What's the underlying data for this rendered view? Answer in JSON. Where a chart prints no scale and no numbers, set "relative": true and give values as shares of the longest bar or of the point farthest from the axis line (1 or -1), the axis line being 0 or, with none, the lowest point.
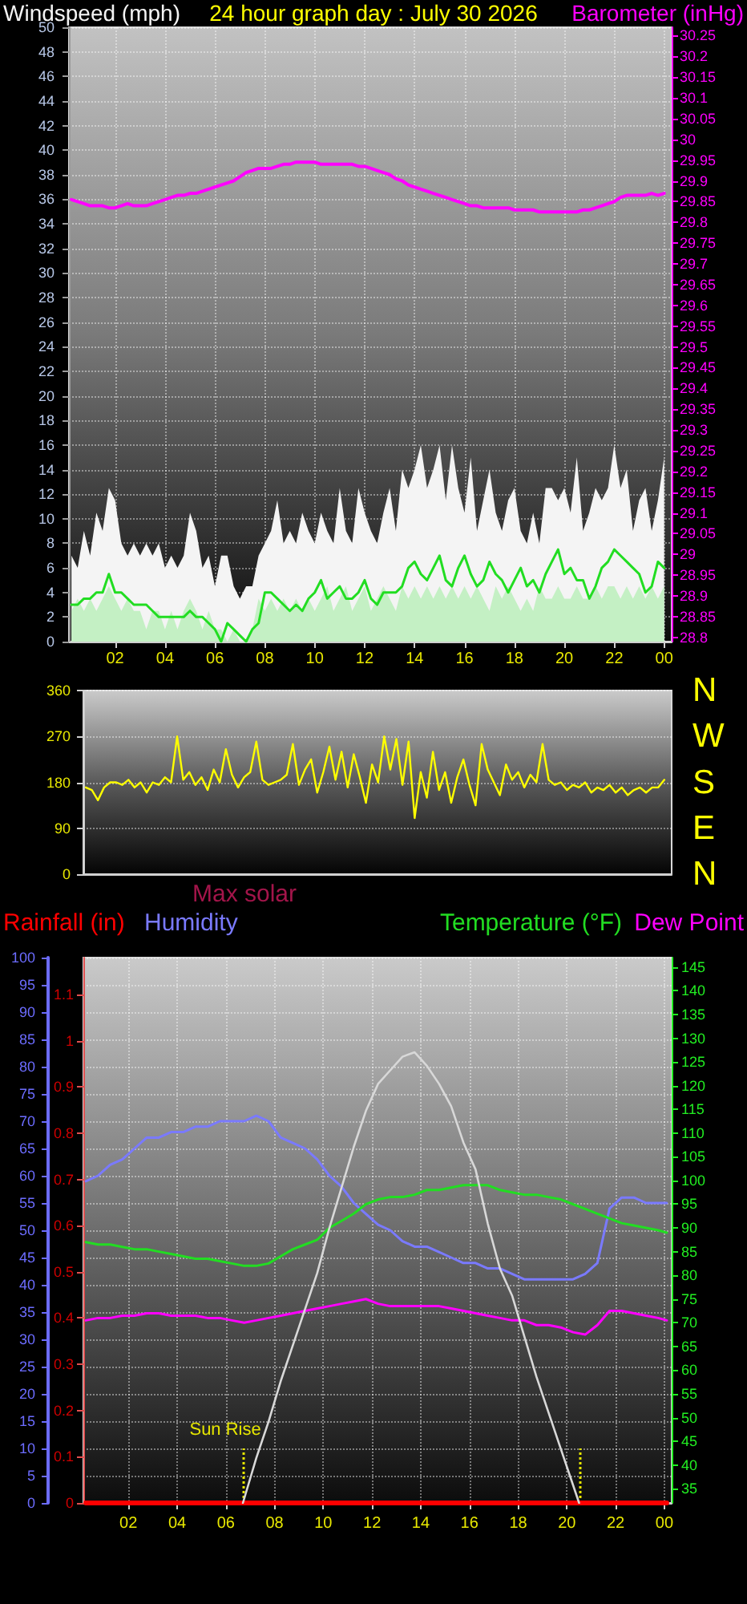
{
  "chart_data": [
    {
      "type": "line",
      "title": "24 hour graph day : July 30 2026",
      "ylabel": "Windspeed (mph)",
      "y2label": "Barometer (inHg)",
      "x": [
        "2026-07-29T00:15",
        "2026-07-29T00:30",
        "2026-07-29T00:45",
        "2026-07-29T01:00",
        "2026-07-29T01:15",
        "2026-07-29T01:30",
        "2026-07-29T01:45",
        "2026-07-29T02:00",
        "2026-07-29T02:15",
        "2026-07-29T02:30",
        "2026-07-29T02:45",
        "2026-07-29T03:00",
        "2026-07-29T03:15",
        "2026-07-29T03:30",
        "2026-07-29T03:45",
        "2026-07-29T04:00",
        "2026-07-29T04:15",
        "2026-07-29T04:30",
        "2026-07-29T04:45",
        "2026-07-29T05:00",
        "2026-07-29T05:15",
        "2026-07-29T05:30",
        "2026-07-29T05:45",
        "2026-07-29T06:00",
        "2026-07-29T06:15",
        "2026-07-29T06:30",
        "2026-07-29T06:45",
        "2026-07-29T07:00",
        "2026-07-29T07:15",
        "2026-07-29T07:30",
        "2026-07-29T07:45",
        "2026-07-29T08:00",
        "2026-07-29T08:15",
        "2026-07-29T08:30",
        "2026-07-29T08:45",
        "2026-07-29T09:00",
        "2026-07-29T09:15",
        "2026-07-29T09:30",
        "2026-07-29T09:45",
        "2026-07-29T10:00",
        "2026-07-29T10:15",
        "2026-07-29T10:30",
        "2026-07-29T10:45",
        "2026-07-29T11:00",
        "2026-07-29T11:15",
        "2026-07-29T11:30",
        "2026-07-29T11:45",
        "2026-07-29T12:00",
        "2026-07-29T12:15",
        "2026-07-29T12:30",
        "2026-07-29T12:45",
        "2026-07-29T13:00",
        "2026-07-29T13:15",
        "2026-07-29T13:30",
        "2026-07-29T13:45",
        "2026-07-29T14:00",
        "2026-07-29T14:15",
        "2026-07-29T14:30",
        "2026-07-29T14:45",
        "2026-07-29T15:00",
        "2026-07-29T15:15",
        "2026-07-29T15:30",
        "2026-07-29T15:45",
        "2026-07-29T16:00",
        "2026-07-29T16:15",
        "2026-07-29T16:30",
        "2026-07-29T16:45",
        "2026-07-29T17:00",
        "2026-07-29T17:15",
        "2026-07-29T17:30",
        "2026-07-29T17:45",
        "2026-07-29T18:00",
        "2026-07-29T18:15",
        "2026-07-29T18:30",
        "2026-07-29T18:45",
        "2026-07-29T19:00",
        "2026-07-29T19:15",
        "2026-07-29T19:30",
        "2026-07-29T19:45",
        "2026-07-29T20:00",
        "2026-07-29T20:15",
        "2026-07-29T20:30",
        "2026-07-29T20:45",
        "2026-07-29T21:00",
        "2026-07-29T21:15",
        "2026-07-29T21:30",
        "2026-07-29T21:45",
        "2026-07-29T22:00",
        "2026-07-29T22:15",
        "2026-07-29T22:30",
        "2026-07-29T22:45",
        "2026-07-29T23:00",
        "2026-07-29T23:15",
        "2026-07-29T23:30",
        "2026-07-29T23:45",
        "2026-07-30T00:00"
      ],
      "xlim": [
        "2026-07-29T00:09",
        "2026-07-30T00:18"
      ],
      "xticks": [
        {
          "value": "2026-07-29T02:00",
          "label": "02"
        },
        {
          "value": "2026-07-29T04:00",
          "label": "04"
        },
        {
          "value": "2026-07-29T06:00",
          "label": "06"
        },
        {
          "value": "2026-07-29T08:00",
          "label": "08"
        },
        {
          "value": "2026-07-29T10:00",
          "label": "10"
        },
        {
          "value": "2026-07-29T12:00",
          "label": "12"
        },
        {
          "value": "2026-07-29T14:00",
          "label": "14"
        },
        {
          "value": "2026-07-29T16:00",
          "label": "16"
        },
        {
          "value": "2026-07-29T18:00",
          "label": "18"
        },
        {
          "value": "2026-07-29T20:00",
          "label": "20"
        },
        {
          "value": "2026-07-29T22:00",
          "label": "22"
        },
        {
          "value": "2026-07-30T00:00",
          "label": "00"
        }
      ],
      "ylim": [
        0,
        50
      ],
      "yticks": [
        0,
        2,
        4,
        6,
        8,
        10,
        12,
        14,
        16,
        18,
        20,
        22,
        24,
        26,
        28,
        30,
        32,
        34,
        36,
        38,
        40,
        42,
        44,
        46,
        48,
        50
      ],
      "y2lim": [
        28.79,
        30.27
      ],
      "y2ticks": [
        28.8,
        28.85,
        28.9,
        28.95,
        29,
        29.05,
        29.1,
        29.15,
        29.2,
        29.25,
        29.3,
        29.35,
        29.4,
        29.45,
        29.5,
        29.55,
        29.6,
        29.65,
        29.7,
        29.75,
        29.8,
        29.85,
        29.9,
        29.95,
        30,
        30.05,
        30.1,
        30.15,
        30.2,
        30.25
      ],
      "grid": true,
      "series": [
        {
          "type": "area",
          "color": "#f4f4f4",
          "values": [
            7,
            6,
            9,
            7,
            10.5,
            9,
            12.5,
            11.5,
            8,
            7,
            8,
            7,
            8,
            7,
            8,
            6,
            7,
            6,
            7,
            10.5,
            9,
            6,
            7,
            4.5,
            7,
            7,
            4.5,
            3.5,
            4.5,
            4.5,
            7,
            8,
            9,
            11.5,
            8,
            9,
            8,
            10.5,
            9,
            8,
            10.5,
            9,
            8,
            12.5,
            9,
            8,
            12.5,
            10.5,
            9,
            8,
            10.5,
            12.5,
            9,
            14,
            12.5,
            14,
            16,
            12.5,
            14,
            16,
            11.5,
            16,
            12.5,
            10.5,
            15,
            9,
            11.5,
            14,
            10.5,
            9,
            11.5,
            12.5,
            9,
            8,
            10.5,
            8,
            12.5,
            12.5,
            11.5,
            12.5,
            10.5,
            15,
            9,
            10.5,
            12.5,
            11.5,
            12.5,
            16,
            12.5,
            14,
            9,
            11.5,
            12.5,
            9,
            11.5,
            15
          ]
        },
        {
          "type": "area",
          "color": "#c4f0c4",
          "values": [
            2.5,
            3.5,
            2.5,
            3.5,
            2.5,
            3.5,
            4.5,
            3.5,
            2.5,
            3.5,
            2.5,
            2.5,
            1,
            2.5,
            2.5,
            1,
            2.5,
            1,
            2.5,
            3.5,
            2.5,
            1,
            2.5,
            1,
            1,
            0,
            1,
            0,
            0,
            1,
            3.5,
            2.5,
            3.5,
            2.5,
            3.5,
            2.5,
            3.5,
            2.5,
            3.5,
            2.5,
            3.5,
            4.5,
            2.5,
            3.5,
            4.5,
            2.5,
            3.5,
            4.5,
            2.5,
            3.5,
            4.5,
            3.5,
            2.5,
            4.5,
            3.5,
            4.5,
            3.5,
            4.5,
            3.5,
            4.5,
            3.5,
            4.5,
            3.5,
            4.5,
            3.5,
            4.5,
            3.5,
            2.5,
            4.5,
            3.5,
            4.5,
            3.5,
            2.5,
            3.5,
            2.5,
            4.5,
            3.5,
            3.5,
            4.5,
            3.5,
            3.5,
            4.5,
            3.5,
            3.5,
            4.5,
            3.5,
            4.5,
            4.5,
            3.5,
            4.5,
            3.5,
            4.5,
            3.5,
            4.5,
            3.5,
            4.5
          ]
        },
        {
          "color": "#22dd22",
          "values": [
            3,
            3,
            3.5,
            3.5,
            4,
            4,
            5.5,
            4,
            4,
            3.5,
            3,
            3,
            3,
            2.5,
            2,
            2,
            2,
            2,
            2,
            2.5,
            2,
            2,
            1.5,
            1,
            0,
            1.5,
            1,
            0.5,
            0,
            1,
            1.5,
            4,
            4,
            3.5,
            3,
            2.5,
            3,
            2.5,
            3.5,
            4,
            5,
            3.5,
            4,
            4.5,
            3.5,
            3.5,
            4,
            5,
            3.5,
            3,
            4,
            4,
            4,
            4.5,
            6,
            6.5,
            5.5,
            5,
            6,
            7,
            5,
            4.5,
            6,
            7,
            5.5,
            4.5,
            5,
            6.5,
            5.5,
            5,
            4,
            5,
            6,
            4.5,
            5,
            4,
            5.5,
            6.5,
            7.5,
            5.5,
            6,
            5,
            5,
            3.5,
            4.5,
            6,
            6.5,
            7.5,
            7,
            6.5,
            6,
            5.5,
            4,
            4.5,
            6.5,
            6
          ]
        },
        {
          "color": "#ff00ff",
          "axis": "y2",
          "values": [
            29.855,
            29.85,
            29.845,
            29.84,
            29.84,
            29.84,
            29.835,
            29.835,
            29.84,
            29.845,
            29.84,
            29.84,
            29.84,
            29.845,
            29.85,
            29.855,
            29.86,
            29.865,
            29.865,
            29.87,
            29.87,
            29.875,
            29.88,
            29.885,
            29.89,
            29.895,
            29.9,
            29.91,
            29.92,
            29.925,
            29.93,
            29.93,
            29.93,
            29.935,
            29.94,
            29.94,
            29.945,
            29.945,
            29.945,
            29.945,
            29.94,
            29.94,
            29.94,
            29.94,
            29.94,
            29.94,
            29.935,
            29.935,
            29.93,
            29.925,
            29.92,
            29.915,
            29.905,
            29.9,
            29.89,
            29.885,
            29.88,
            29.875,
            29.87,
            29.865,
            29.86,
            29.855,
            29.85,
            29.845,
            29.84,
            29.84,
            29.835,
            29.835,
            29.835,
            29.835,
            29.835,
            29.83,
            29.83,
            29.83,
            29.83,
            29.825,
            29.825,
            29.825,
            29.825,
            29.825,
            29.825,
            29.825,
            29.83,
            29.83,
            29.835,
            29.84,
            29.845,
            29.85,
            29.86,
            29.865,
            29.865,
            29.865,
            29.865,
            29.87,
            29.865,
            29.87
          ]
        }
      ]
    },
    {
      "type": "line",
      "x": [
        "2026-07-29T00:15",
        "2026-07-29T00:30",
        "2026-07-29T00:45",
        "2026-07-29T01:00",
        "2026-07-29T01:15",
        "2026-07-29T01:30",
        "2026-07-29T01:45",
        "2026-07-29T02:00",
        "2026-07-29T02:15",
        "2026-07-29T02:30",
        "2026-07-29T02:45",
        "2026-07-29T03:00",
        "2026-07-29T03:15",
        "2026-07-29T03:30",
        "2026-07-29T03:45",
        "2026-07-29T04:00",
        "2026-07-29T04:15",
        "2026-07-29T04:30",
        "2026-07-29T04:45",
        "2026-07-29T05:00",
        "2026-07-29T05:15",
        "2026-07-29T05:30",
        "2026-07-29T05:45",
        "2026-07-29T06:00",
        "2026-07-29T06:15",
        "2026-07-29T06:30",
        "2026-07-29T06:45",
        "2026-07-29T07:00",
        "2026-07-29T07:15",
        "2026-07-29T07:30",
        "2026-07-29T07:45",
        "2026-07-29T08:00",
        "2026-07-29T08:15",
        "2026-07-29T08:30",
        "2026-07-29T08:45",
        "2026-07-29T09:00",
        "2026-07-29T09:15",
        "2026-07-29T09:30",
        "2026-07-29T09:45",
        "2026-07-29T10:00",
        "2026-07-29T10:15",
        "2026-07-29T10:30",
        "2026-07-29T10:45",
        "2026-07-29T11:00",
        "2026-07-29T11:15",
        "2026-07-29T11:30",
        "2026-07-29T11:45",
        "2026-07-29T12:00",
        "2026-07-29T12:15",
        "2026-07-29T12:30",
        "2026-07-29T12:45",
        "2026-07-29T13:00",
        "2026-07-29T13:15",
        "2026-07-29T13:30",
        "2026-07-29T13:45",
        "2026-07-29T14:00",
        "2026-07-29T14:15",
        "2026-07-29T14:30",
        "2026-07-29T14:45",
        "2026-07-29T15:00",
        "2026-07-29T15:15",
        "2026-07-29T15:30",
        "2026-07-29T15:45",
        "2026-07-29T16:00",
        "2026-07-29T16:15",
        "2026-07-29T16:30",
        "2026-07-29T16:45",
        "2026-07-29T17:00",
        "2026-07-29T17:15",
        "2026-07-29T17:30",
        "2026-07-29T17:45",
        "2026-07-29T18:00",
        "2026-07-29T18:15",
        "2026-07-29T18:30",
        "2026-07-29T18:45",
        "2026-07-29T19:00",
        "2026-07-29T19:15",
        "2026-07-29T19:30",
        "2026-07-29T19:45",
        "2026-07-29T20:00",
        "2026-07-29T20:15",
        "2026-07-29T20:30",
        "2026-07-29T20:45",
        "2026-07-29T21:00",
        "2026-07-29T21:15",
        "2026-07-29T21:30",
        "2026-07-29T21:45",
        "2026-07-29T22:00",
        "2026-07-29T22:15",
        "2026-07-29T22:30",
        "2026-07-29T22:45",
        "2026-07-29T23:00",
        "2026-07-29T23:15",
        "2026-07-29T23:30",
        "2026-07-29T23:45",
        "2026-07-30T00:00"
      ],
      "xlim": [
        "2026-07-29T00:09",
        "2026-07-30T00:18"
      ],
      "ylim": [
        0,
        360
      ],
      "yticks": [
        0,
        90,
        180,
        270,
        360
      ],
      "y2_categories": [
        "N",
        "W",
        "S",
        "E",
        "N"
      ],
      "tick_labels": "y",
      "grid": "y",
      "series": [
        {
          "color": "#ffff00",
          "values": [
            170,
            165,
            145,
            170,
            180,
            180,
            175,
            185,
            170,
            180,
            160,
            180,
            175,
            190,
            180,
            270,
            185,
            200,
            175,
            190,
            165,
            205,
            180,
            245,
            195,
            170,
            190,
            200,
            260,
            185,
            175,
            180,
            185,
            195,
            255,
            175,
            205,
            225,
            160,
            200,
            250,
            185,
            240,
            170,
            235,
            190,
            140,
            215,
            180,
            270,
            205,
            265,
            175,
            260,
            110,
            200,
            150,
            240,
            165,
            200,
            140,
            190,
            225,
            175,
            135,
            255,
            205,
            180,
            155,
            215,
            185,
            200,
            170,
            195,
            180,
            255,
            185,
            175,
            180,
            165,
            175,
            170,
            180,
            160,
            170,
            165,
            175,
            160,
            170,
            155,
            165,
            170,
            160,
            170,
            170,
            185
          ]
        }
      ]
    },
    {
      "type": "line",
      "ylabel": "Humidity",
      "y2label": "Temperature (°F)",
      "y3label": "Rainfall (in)",
      "x": [
        "2026-07-29T00:15",
        "2026-07-29T00:45",
        "2026-07-29T01:15",
        "2026-07-29T01:45",
        "2026-07-29T02:15",
        "2026-07-29T02:45",
        "2026-07-29T03:15",
        "2026-07-29T03:45",
        "2026-07-29T04:15",
        "2026-07-29T04:45",
        "2026-07-29T05:15",
        "2026-07-29T05:45",
        "2026-07-29T06:15",
        "2026-07-29T06:45",
        "2026-07-29T07:15",
        "2026-07-29T07:45",
        "2026-07-29T08:15",
        "2026-07-29T08:45",
        "2026-07-29T09:15",
        "2026-07-29T09:45",
        "2026-07-29T10:15",
        "2026-07-29T10:45",
        "2026-07-29T11:15",
        "2026-07-29T11:45",
        "2026-07-29T12:15",
        "2026-07-29T12:45",
        "2026-07-29T13:15",
        "2026-07-29T13:45",
        "2026-07-29T14:15",
        "2026-07-29T14:45",
        "2026-07-29T15:15",
        "2026-07-29T15:45",
        "2026-07-29T16:15",
        "2026-07-29T16:45",
        "2026-07-29T17:15",
        "2026-07-29T17:45",
        "2026-07-29T18:15",
        "2026-07-29T18:45",
        "2026-07-29T19:15",
        "2026-07-29T19:45",
        "2026-07-29T20:15",
        "2026-07-29T20:45",
        "2026-07-29T21:15",
        "2026-07-29T21:45",
        "2026-07-29T22:15",
        "2026-07-29T22:45",
        "2026-07-29T23:15",
        "2026-07-29T23:45",
        "2026-07-30T00:06"
      ],
      "xlim": [
        "2026-07-29T00:09",
        "2026-07-30T00:18"
      ],
      "xticks": [
        {
          "value": "2026-07-29T02:00",
          "label": "02"
        },
        {
          "value": "2026-07-29T04:00",
          "label": "04"
        },
        {
          "value": "2026-07-29T06:00",
          "label": "06"
        },
        {
          "value": "2026-07-29T08:00",
          "label": "08"
        },
        {
          "value": "2026-07-29T10:00",
          "label": "10"
        },
        {
          "value": "2026-07-29T12:00",
          "label": "12"
        },
        {
          "value": "2026-07-29T14:00",
          "label": "14"
        },
        {
          "value": "2026-07-29T16:00",
          "label": "16"
        },
        {
          "value": "2026-07-29T18:00",
          "label": "18"
        },
        {
          "value": "2026-07-29T20:00",
          "label": "20"
        },
        {
          "value": "2026-07-29T22:00",
          "label": "22"
        },
        {
          "value": "2026-07-30T00:00",
          "label": "00"
        }
      ],
      "ylim": [
        0,
        100
      ],
      "yticks": [
        0,
        5,
        10,
        15,
        20,
        25,
        30,
        35,
        40,
        45,
        50,
        55,
        60,
        65,
        70,
        75,
        80,
        85,
        90,
        95,
        100
      ],
      "y2lim": [
        32,
        147
      ],
      "y2ticks": [
        35,
        40,
        45,
        50,
        55,
        60,
        65,
        70,
        75,
        80,
        85,
        90,
        95,
        100,
        105,
        110,
        115,
        120,
        125,
        130,
        135,
        140,
        145
      ],
      "y3lim": [
        0,
        1.18
      ],
      "y3ticks": [
        0,
        0.1,
        0.2,
        0.3,
        0.4,
        0.5,
        0.6,
        0.7,
        0.8,
        0.9,
        1,
        1.1
      ],
      "grid": true,
      "ref_lines": [
        {
          "axis": "x",
          "value": "2026-07-29T06:42",
          "label": "Sun Rise",
          "color": "#e6e600",
          "line_style": "dotted"
        },
        {
          "axis": "x",
          "value": "2026-07-29T20:30",
          "color": "#e6e600",
          "line_style": "dotted"
        }
      ],
      "series": [
        {
          "color": "#7a7aff",
          "values": [
            59,
            60,
            62,
            63,
            65,
            67,
            67,
            68,
            68,
            69,
            69,
            70,
            70,
            70,
            71,
            70,
            67,
            66,
            65,
            63,
            60,
            58,
            55,
            53,
            51,
            50,
            48,
            47,
            47,
            46,
            45,
            44,
            44,
            43,
            43,
            42,
            41,
            41,
            41,
            41,
            41,
            42,
            44,
            54,
            56,
            56,
            55,
            55,
            55
          ]
        },
        {
          "color": "#22dd22",
          "axis": "y2",
          "values": [
            87,
            86.5,
            86.5,
            86,
            85.5,
            85.5,
            85,
            84.5,
            84,
            83.5,
            83.5,
            83,
            82.5,
            82,
            82,
            82.5,
            84,
            85.5,
            86.5,
            87.5,
            90,
            91.5,
            93,
            95,
            96,
            96.5,
            96.5,
            97,
            98,
            98,
            98.5,
            99,
            99,
            99,
            98,
            97.5,
            97,
            97,
            96.5,
            96,
            95,
            94,
            93,
            92,
            91,
            90.5,
            90,
            89.5,
            89
          ]
        },
        {
          "name": "Dew Point",
          "color": "#ff00ff",
          "axis": "y2",
          "values": [
            70.5,
            71,
            71,
            71.5,
            71.5,
            72,
            72,
            71.5,
            71.5,
            71.5,
            71,
            71,
            70.5,
            70,
            70.5,
            71,
            71.5,
            72,
            72.5,
            73,
            73.5,
            74,
            74.5,
            75,
            74,
            73.5,
            73.5,
            73.5,
            73.5,
            73.5,
            73,
            72.5,
            72,
            71.5,
            71,
            70.5,
            70.5,
            69.5,
            69.5,
            69,
            68,
            67.5,
            69.5,
            72.5,
            72.5,
            72,
            71.5,
            71,
            70.5
          ]
        },
        {
          "color": "#ff0000",
          "axis": "y3",
          "values": [
            0,
            0,
            0,
            0,
            0,
            0,
            0,
            0,
            0,
            0,
            0,
            0,
            0,
            0,
            0,
            0,
            0,
            0,
            0,
            0,
            0,
            0,
            0,
            0,
            0,
            0,
            0,
            0,
            0,
            0,
            0,
            0,
            0,
            0,
            0,
            0,
            0,
            0,
            0,
            0,
            0,
            0,
            0,
            0,
            0,
            0,
            0,
            0,
            0
          ]
        }
      ]
    },
    {
      "type": "line",
      "relative": true,
      "title": "Max solar",
      "x": [
        "2026-07-29T06:42",
        "2026-07-29T07:15",
        "2026-07-29T07:45",
        "2026-07-29T08:15",
        "2026-07-29T08:45",
        "2026-07-29T09:15",
        "2026-07-29T09:45",
        "2026-07-29T10:15",
        "2026-07-29T10:45",
        "2026-07-29T11:15",
        "2026-07-29T11:45",
        "2026-07-29T12:15",
        "2026-07-29T12:45",
        "2026-07-29T13:15",
        "2026-07-29T13:45",
        "2026-07-29T14:15",
        "2026-07-29T14:45",
        "2026-07-29T15:15",
        "2026-07-29T15:45",
        "2026-07-29T16:15",
        "2026-07-29T16:45",
        "2026-07-29T17:15",
        "2026-07-29T17:45",
        "2026-07-29T18:15",
        "2026-07-29T18:45",
        "2026-07-29T19:15",
        "2026-07-29T19:45",
        "2026-07-29T20:15",
        "2026-07-29T20:30"
      ],
      "xlim": [
        "2026-07-29T00:09",
        "2026-07-30T00:18"
      ],
      "series": [
        {
          "color": "#d8d8d8",
          "values": [
            0,
            0.1,
            0.18,
            0.27,
            0.35,
            0.43,
            0.51,
            0.61,
            0.7,
            0.79,
            0.87,
            0.93,
            0.96,
            0.99,
            1,
            0.97,
            0.93,
            0.88,
            0.8,
            0.74,
            0.62,
            0.52,
            0.46,
            0.37,
            0.28,
            0.2,
            0.12,
            0.04,
            0
          ]
        }
      ]
    }
  ]
}
